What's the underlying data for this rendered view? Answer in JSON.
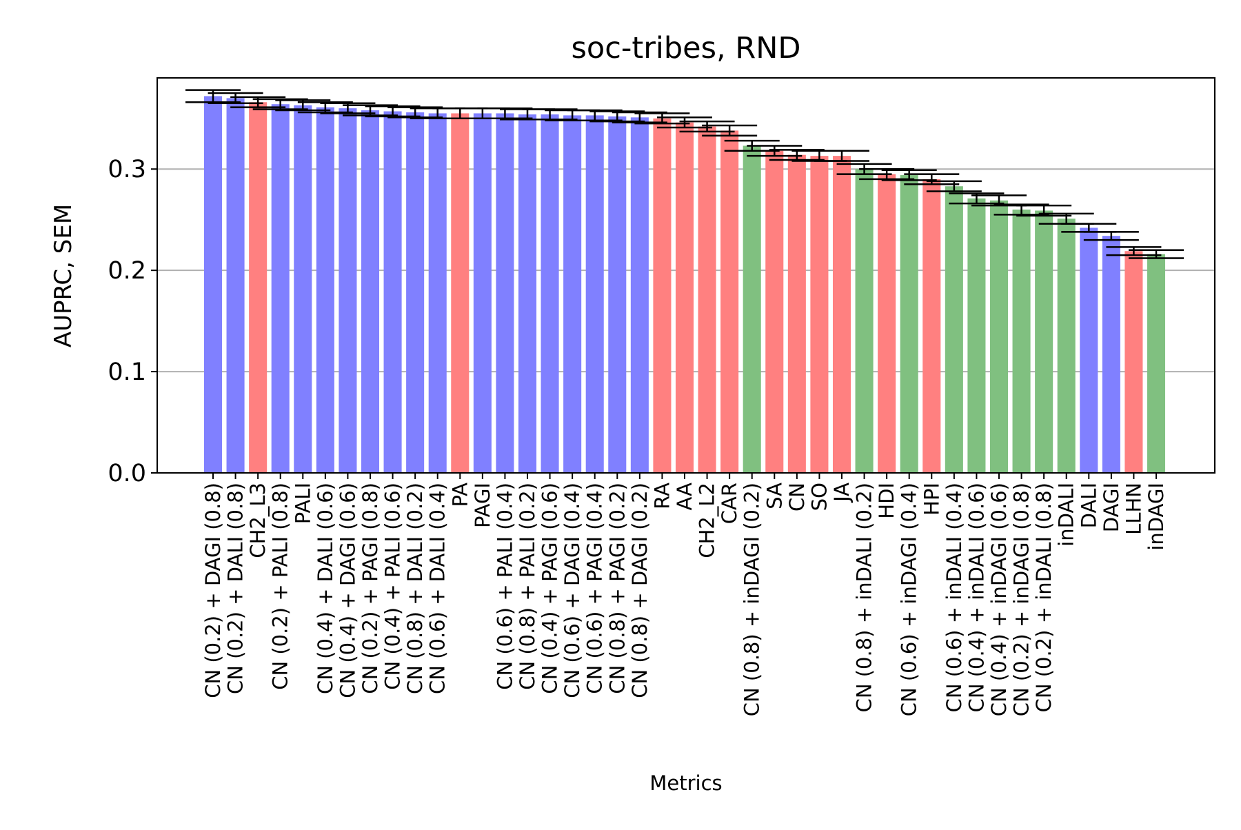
{
  "chart_data": {
    "type": "bar",
    "title": "soc-tribes, RND",
    "xlabel": "Metrics",
    "ylabel": "AUPRC, SEM",
    "ylim": [
      0,
      0.39
    ],
    "yticks": [
      0.0,
      0.1,
      0.2,
      0.3
    ],
    "ytick_labels": [
      "0.0",
      "0.1",
      "0.2",
      "0.3"
    ],
    "grid": "y",
    "legend": "none",
    "colors": {
      "blue": "#8080ff",
      "red": "#ff8080",
      "green": "#80c080"
    },
    "categories": [
      "CN (0.2) + DAGI (0.8)",
      "CN (0.2) + DALI (0.8)",
      "CH2_L3",
      "CN (0.2) + PALI (0.8)",
      "PALI",
      "CN (0.4) + DALI (0.6)",
      "CN (0.4) + DAGI (0.6)",
      "CN (0.2) + PAGI (0.8)",
      "CN (0.4) + PALI (0.6)",
      "CN (0.8) + DALI (0.2)",
      "CN (0.6) + DALI (0.4)",
      "PA",
      "PAGI",
      "CN (0.6) + PALI (0.4)",
      "CN (0.8) + PALI (0.2)",
      "CN (0.4) + PAGI (0.6)",
      "CN (0.6) + DAGI (0.4)",
      "CN (0.6) + PAGI (0.4)",
      "CN (0.8) + PAGI (0.2)",
      "CN (0.8) + DAGI (0.2)",
      "RA",
      "AA",
      "CH2_L2",
      "CAR",
      "CN (0.8) + inDAGI (0.2)",
      "SA",
      "CN",
      "SO",
      "JA",
      "CN (0.8) + inDALI (0.2)",
      "HDI",
      "CN (0.6) + inDAGI (0.4)",
      "HPI",
      "CN (0.6) + inDALI (0.4)",
      "CN (0.4) + inDALI (0.6)",
      "CN (0.4) + inDAGI (0.6)",
      "CN (0.2) + inDAGI (0.8)",
      "CN (0.2) + inDALI (0.8)",
      "inDALI",
      "DALI",
      "DAGI",
      "LLHN",
      "inDAGI"
    ],
    "values": [
      0.372,
      0.37,
      0.366,
      0.364,
      0.363,
      0.361,
      0.36,
      0.358,
      0.357,
      0.356,
      0.355,
      0.355,
      0.355,
      0.355,
      0.354,
      0.354,
      0.353,
      0.353,
      0.352,
      0.351,
      0.35,
      0.346,
      0.342,
      0.338,
      0.323,
      0.318,
      0.314,
      0.313,
      0.313,
      0.3,
      0.295,
      0.294,
      0.29,
      0.283,
      0.271,
      0.269,
      0.26,
      0.259,
      0.251,
      0.242,
      0.234,
      0.219,
      0.216
    ],
    "errors": [
      0.006,
      0.005,
      0.005,
      0.005,
      0.005,
      0.005,
      0.005,
      0.005,
      0.005,
      0.005,
      0.005,
      0.005,
      0.005,
      0.005,
      0.005,
      0.005,
      0.005,
      0.005,
      0.005,
      0.005,
      0.005,
      0.005,
      0.005,
      0.005,
      0.005,
      0.005,
      0.005,
      0.005,
      0.005,
      0.005,
      0.005,
      0.005,
      0.005,
      0.005,
      0.005,
      0.005,
      0.005,
      0.005,
      0.005,
      0.004,
      0.004,
      0.004,
      0.004
    ],
    "bar_colors": [
      "blue",
      "blue",
      "red",
      "blue",
      "blue",
      "blue",
      "blue",
      "blue",
      "blue",
      "blue",
      "blue",
      "red",
      "blue",
      "blue",
      "blue",
      "blue",
      "blue",
      "blue",
      "blue",
      "blue",
      "red",
      "red",
      "red",
      "red",
      "green",
      "red",
      "red",
      "red",
      "red",
      "green",
      "red",
      "green",
      "red",
      "green",
      "green",
      "green",
      "green",
      "green",
      "green",
      "blue",
      "blue",
      "red",
      "green"
    ]
  }
}
